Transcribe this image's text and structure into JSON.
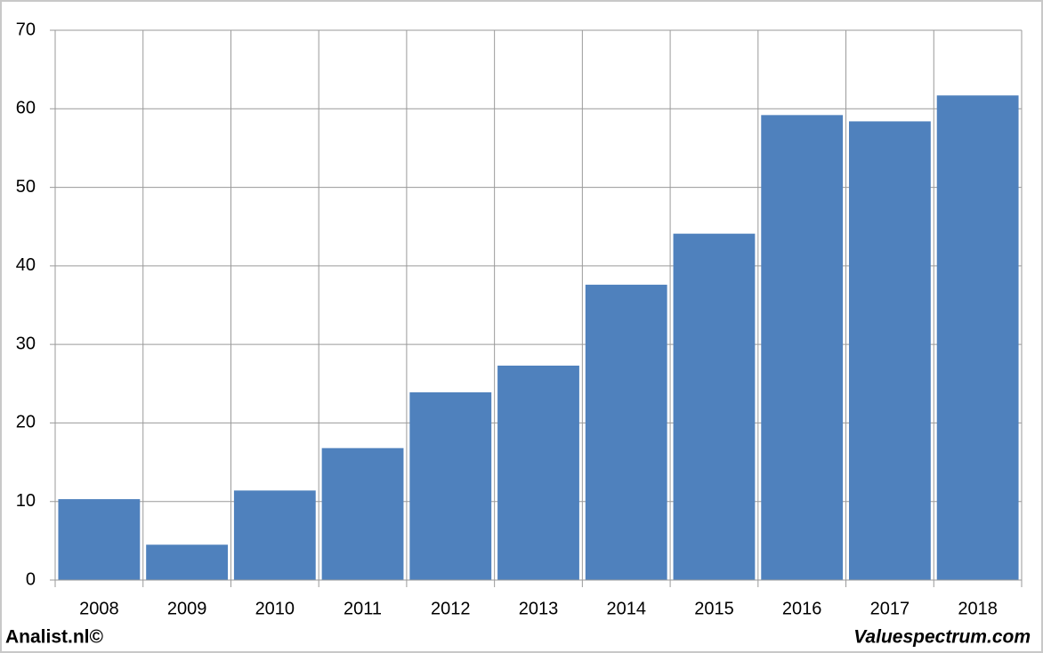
{
  "chart_data": {
    "type": "bar",
    "categories": [
      "2008",
      "2009",
      "2010",
      "2011",
      "2012",
      "2013",
      "2014",
      "2015",
      "2016",
      "2017",
      "2018"
    ],
    "values": [
      10.3,
      4.5,
      11.4,
      16.8,
      23.9,
      27.3,
      37.6,
      44.1,
      59.2,
      58.4,
      61.7
    ],
    "color": "#4f81bd",
    "ylim": [
      0,
      70
    ],
    "yticks": [
      0,
      10,
      20,
      30,
      40,
      50,
      60,
      70
    ],
    "grid": true
  },
  "footer": {
    "left": "Analist.nl©",
    "right": "Valuespectrum.com"
  }
}
